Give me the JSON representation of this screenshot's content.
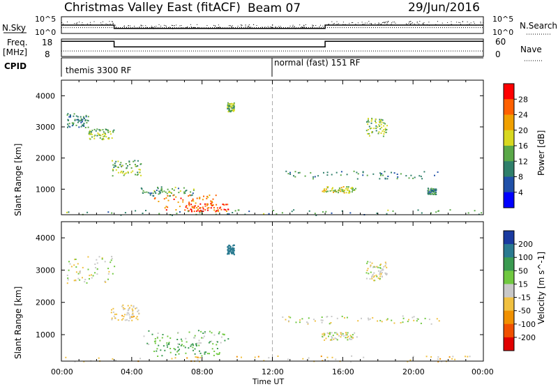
{
  "header": {
    "station": "Christmas Valley East (fitACF)",
    "beam": "Beam 07",
    "date": "29/Jun/2016"
  },
  "strip_labels": {
    "nsky": "N.Sky",
    "nsearch": "N.Search",
    "freq": "Freq.",
    "freq_unit": "[MHz]",
    "nave": "Nave",
    "cpid": "CPID",
    "nsky_ticks": [
      "10^5",
      "10^0"
    ],
    "nsearch_ticks": [
      "10^5",
      "10^0"
    ],
    "freq_ticks": [
      "18",
      "8"
    ],
    "nave_ticks": [
      "60",
      "0"
    ]
  },
  "cpid_labels": [
    "themis 3300 RF",
    "normal (fast) 151 RF"
  ],
  "x_axis": {
    "label": "Time UT",
    "ticks": [
      "00:00",
      "04:00",
      "08:00",
      "12:00",
      "16:00",
      "20:00",
      "00:00"
    ]
  },
  "chart_data": [
    {
      "type": "line",
      "panel": "noise",
      "xlim": [
        0,
        24
      ],
      "series": [
        {
          "name": "N.Sky",
          "x": [
            0,
            3,
            3,
            15,
            15,
            24
          ],
          "y": [
            0.5,
            0.5,
            0.3,
            0.3,
            0.5,
            0.5
          ]
        },
        {
          "name": "N.Search",
          "x": [
            0,
            24
          ],
          "y": [
            0.35,
            0.35
          ]
        }
      ]
    },
    {
      "type": "line",
      "panel": "freq-nave",
      "xlim": [
        0,
        24
      ],
      "series": [
        {
          "name": "Freq.",
          "x": [
            0,
            3,
            3,
            15,
            15,
            24
          ],
          "y": [
            17,
            17,
            13.5,
            13.5,
            17,
            17
          ],
          "ylim": [
            8,
            18
          ]
        },
        {
          "name": "Nave",
          "x": [
            0,
            24
          ],
          "y": [
            18,
            18
          ],
          "ylim": [
            0,
            60
          ]
        }
      ]
    },
    {
      "type": "heatmap",
      "panel": "power",
      "xlabel": "Time UT",
      "ylabel": "Slant Range [km]",
      "xlim": [
        0,
        24
      ],
      "ylim": [
        180,
        4500
      ],
      "y_ticks": [
        1000,
        2000,
        3000,
        4000
      ],
      "colorbar": {
        "label": "Power [dB]",
        "ticks": [
          4,
          8,
          12,
          16,
          20,
          24,
          28
        ],
        "colors": [
          "#0000ff",
          "#2050a8",
          "#2f7f6a",
          "#5aa848",
          "#d8d820",
          "#f0a000",
          "#ff6000",
          "#ff0000"
        ]
      },
      "regions": [
        {
          "t": [
            0.3,
            1.5
          ],
          "r": [
            3000,
            3450
          ],
          "db": 10
        },
        {
          "t": [
            1.5,
            3.0
          ],
          "r": [
            2600,
            2950
          ],
          "db": 15
        },
        {
          "t": [
            2.8,
            4.5
          ],
          "r": [
            1450,
            1950
          ],
          "db": 14
        },
        {
          "t": [
            4.5,
            7.5
          ],
          "r": [
            800,
            1100
          ],
          "db": 12
        },
        {
          "t": [
            5.2,
            8.8
          ],
          "r": [
            350,
            850
          ],
          "db": 24
        },
        {
          "t": [
            7.0,
            9.5
          ],
          "r": [
            300,
            550
          ],
          "db": 28
        },
        {
          "t": [
            9.4,
            9.8
          ],
          "r": [
            3500,
            3800
          ],
          "db": 14
        },
        {
          "t": [
            12.5,
            21.5
          ],
          "r": [
            1350,
            1600
          ],
          "db": 10
        },
        {
          "t": [
            14.8,
            16.8
          ],
          "r": [
            900,
            1100
          ],
          "db": 17
        },
        {
          "t": [
            17.3,
            18.5
          ],
          "r": [
            2700,
            3300
          ],
          "db": 15
        },
        {
          "t": [
            20.8,
            21.3
          ],
          "r": [
            850,
            1050
          ],
          "db": 10
        },
        {
          "t": [
            0.0,
            24.0
          ],
          "r": [
            180,
            360
          ],
          "db": 12
        }
      ]
    },
    {
      "type": "heatmap",
      "panel": "velocity",
      "xlabel": "Time UT",
      "ylabel": "Slant Range [km]",
      "xlim": [
        0,
        24
      ],
      "ylim": [
        180,
        4500
      ],
      "y_ticks": [
        1000,
        2000,
        3000,
        4000
      ],
      "colorbar": {
        "label": "Velocity [m s^-1]",
        "ticks": [
          200,
          100,
          50,
          15,
          -15,
          -50,
          -100,
          -200
        ],
        "colors": [
          "#1a3aa0",
          "#2a7a90",
          "#3a9a50",
          "#70c840",
          "#c8c8c8",
          "#f0c040",
          "#f09000",
          "#f05000",
          "#e00000"
        ]
      },
      "regions": [
        {
          "t": [
            0.3,
            3.0
          ],
          "r": [
            2600,
            3450
          ],
          "v": 0
        },
        {
          "t": [
            2.8,
            4.5
          ],
          "r": [
            1450,
            1950
          ],
          "v": -20
        },
        {
          "t": [
            4.5,
            9.5
          ],
          "r": [
            700,
            1150
          ],
          "v": 30
        },
        {
          "t": [
            5.2,
            9.0
          ],
          "r": [
            350,
            800
          ],
          "v": 60
        },
        {
          "t": [
            9.4,
            9.8
          ],
          "r": [
            3500,
            3800
          ],
          "v": 150
        },
        {
          "t": [
            12.5,
            21.5
          ],
          "r": [
            1350,
            1600
          ],
          "v": 0
        },
        {
          "t": [
            14.8,
            16.8
          ],
          "r": [
            850,
            1100
          ],
          "v": 0
        },
        {
          "t": [
            17.3,
            18.5
          ],
          "r": [
            2700,
            3300
          ],
          "v": 0
        },
        {
          "t": [
            0.0,
            24.0
          ],
          "r": [
            180,
            360
          ],
          "v": -30
        }
      ]
    }
  ]
}
